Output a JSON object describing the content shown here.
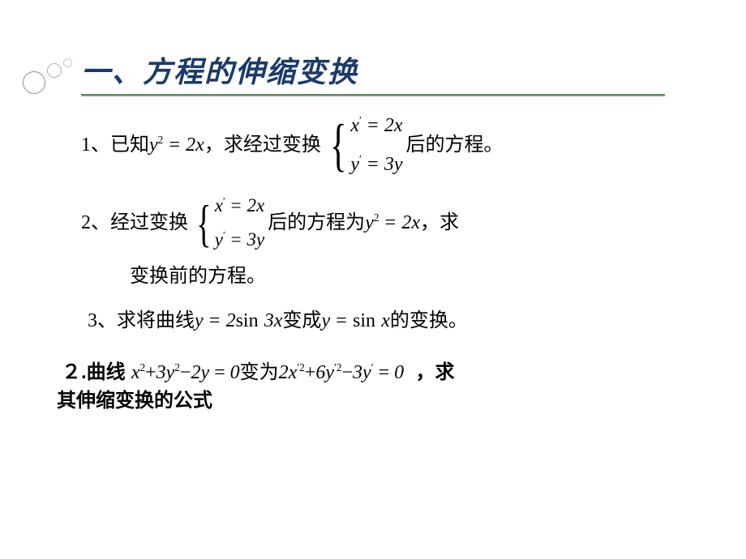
{
  "title": "一、方程的伸缩变换",
  "colors": {
    "title_color": "#1a3a6b",
    "underline_top": "#5a8060",
    "underline_bottom": "#8aac90",
    "text_color": "#000000",
    "background": "#ffffff",
    "deco_border1": "#7a9980",
    "deco_border2": "#a0b8a6",
    "deco_border3": "#c0d0c4"
  },
  "typography": {
    "title_fontsize": 36,
    "body_fontsize": 24,
    "title_font": "KaiTi",
    "body_font": "Times New Roman / SimSun"
  },
  "problems": {
    "p1": {
      "lead": "1、已知",
      "eq_given": "y² = 2x",
      "mid": "，求经过变换",
      "system": {
        "line1": "x′ = 2x",
        "line2": "y′ = 3y"
      },
      "tail": "后的方程。"
    },
    "p2": {
      "lead": "2、经过变换",
      "system": {
        "line1": "x′ = 2x",
        "line2": "y′ = 3y"
      },
      "mid": "后的方程为",
      "eq_result": "y² = 2x",
      "tail1": "，求",
      "line2": "变换前的方程。"
    },
    "p3": {
      "lead": "3、求将曲线",
      "eq_from": "y = 2 sin 3x",
      "mid": "变成",
      "eq_to": "y = sin x",
      "tail": "的变换。"
    },
    "p4": {
      "lead": "２.曲线",
      "eq_from": "x² + 3y² − 2y = 0",
      "mid": "变为",
      "eq_to": "2x′² + 6y′² − 3y′ = 0",
      "tail": "，求",
      "line2": "其伸缩变换的公式"
    }
  }
}
